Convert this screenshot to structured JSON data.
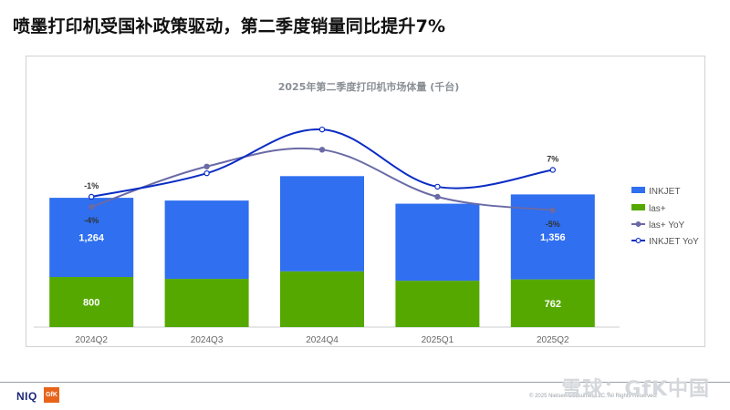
{
  "headline": "喷墨打印机受国补政策驱动，第二季度销量同比提升7%",
  "footer": {
    "logo_niq": "NIQ",
    "logo_gfk": "GfK",
    "copyright": "© 2025 Nielsen Consumer LLC. All Rights Reserved.",
    "watermark": "雪球：GfK中国"
  },
  "colors": {
    "inkjet": "#2f6ff0",
    "las": "#55a800",
    "las_yoy": "#6a6aa6",
    "inkjet_yoy": "#0a2cc4"
  },
  "chart_data": {
    "type": "bar",
    "stacked": true,
    "title": "2025年第二季度打印机市场体量 (千台)",
    "categories": [
      "2024Q2",
      "2024Q3",
      "2024Q4",
      "2025Q1",
      "2025Q2"
    ],
    "series": [
      {
        "name": "INKJET",
        "type": "bar",
        "values": [
          1264,
          1250,
          1520,
          1230,
          1356
        ],
        "data_labels": [
          "1,264",
          "",
          "",
          "",
          "1,356"
        ]
      },
      {
        "name": "las+",
        "type": "bar",
        "values": [
          800,
          770,
          890,
          740,
          762
        ],
        "data_labels": [
          "800",
          "",
          "",
          "",
          "762"
        ]
      },
      {
        "name": "las+ YoY",
        "type": "line",
        "values": [
          -4,
          8,
          13,
          -1,
          -5
        ],
        "data_labels": [
          "-4%",
          "",
          "",
          "",
          "-5%"
        ]
      },
      {
        "name": "INKJET YoY",
        "type": "line",
        "values": [
          -1,
          6,
          19,
          2,
          7
        ],
        "data_labels": [
          "-1%",
          "",
          "",
          "",
          "7%"
        ]
      }
    ],
    "legend": "right",
    "grid": false,
    "ylim": [
      0,
      2400
    ],
    "y2lim": [
      -40,
      25
    ]
  }
}
